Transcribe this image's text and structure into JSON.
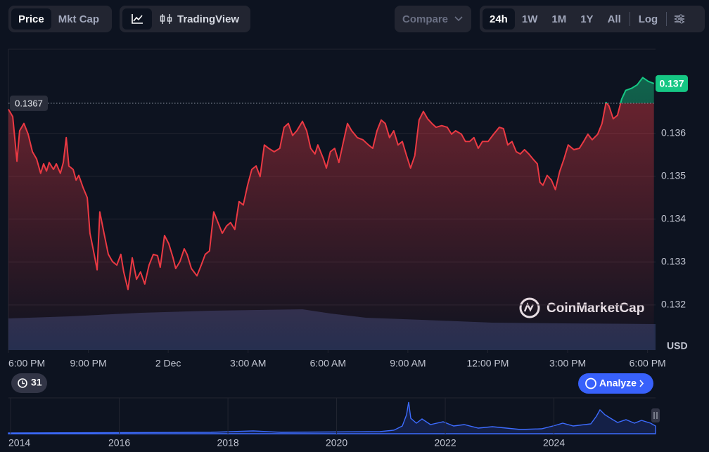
{
  "toolbar": {
    "views": [
      "Price",
      "Mkt Cap"
    ],
    "tradingview": "TradingView",
    "compare": "Compare",
    "ranges": [
      "24h",
      "1W",
      "1M",
      "1Y",
      "All"
    ],
    "log": "Log"
  },
  "chart_data": {
    "type": "line",
    "color": "#ea3943",
    "above_color": "#16c784",
    "x": [
      0,
      0.16,
      0.32,
      0.42,
      0.58,
      0.74,
      0.9,
      1.06,
      1.21,
      1.32,
      1.43,
      1.53,
      1.69,
      1.8,
      1.95,
      2.06,
      2.17,
      2.27,
      2.43,
      2.54,
      2.64,
      2.8,
      2.96,
      3.06,
      3.17,
      3.33,
      3.43,
      3.59,
      3.75,
      3.91,
      4.07,
      4.22,
      4.33,
      4.49,
      4.65,
      4.81,
      4.96,
      5.12,
      5.28,
      5.44,
      5.6,
      5.7,
      5.86,
      6.02,
      6.18,
      6.28,
      6.44,
      6.6,
      6.71,
      6.87,
      7.08,
      7.24,
      7.39,
      7.55,
      7.71,
      7.87,
      8.03,
      8.19,
      8.34,
      8.5,
      8.66,
      8.82,
      8.98,
      9.14,
      9.3,
      9.45,
      9.61,
      9.77,
      9.98,
      10.19,
      10.35,
      10.51,
      10.67,
      10.83,
      11.04,
      11.2,
      11.35,
      11.51,
      11.62,
      11.83,
      11.94,
      12.09,
      12.25,
      12.41,
      12.57,
      12.73,
      12.89,
      13.1,
      13.31,
      13.52,
      13.68,
      13.84,
      14.0,
      14.15,
      14.31,
      14.47,
      14.63,
      14.79,
      14.95,
      15.1,
      15.26,
      15.42,
      15.58,
      15.74,
      15.9,
      16.06,
      16.27,
      16.48,
      16.64,
      16.79,
      17.01,
      17.16,
      17.32,
      17.48,
      17.64,
      17.8,
      18.01,
      18.22,
      18.43,
      18.59,
      18.75,
      18.91,
      19.07,
      19.22,
      19.38,
      19.54,
      19.7,
      19.86,
      19.96,
      20.07,
      20.23,
      20.39,
      20.54,
      20.7,
      20.86,
      21.02,
      21.23,
      21.44,
      21.6,
      21.76,
      21.92,
      22.13,
      22.29,
      22.44,
      22.55,
      22.71,
      22.87,
      23.03,
      23.18,
      23.4,
      23.61,
      23.82,
      24.03,
      24.24
    ],
    "values": [
      0.13656,
      0.13639,
      0.13535,
      0.13606,
      0.13623,
      0.13598,
      0.13557,
      0.1354,
      0.13507,
      0.13529,
      0.13512,
      0.13532,
      0.13516,
      0.13529,
      0.13507,
      0.13532,
      0.1359,
      0.13524,
      0.13516,
      0.13491,
      0.13502,
      0.13474,
      0.1345,
      0.13367,
      0.13334,
      0.13282,
      0.13417,
      0.13367,
      0.13318,
      0.13301,
      0.13293,
      0.13318,
      0.13277,
      0.13236,
      0.1331,
      0.1326,
      0.13277,
      0.13249,
      0.13293,
      0.13318,
      0.13315,
      0.13288,
      0.13362,
      0.13343,
      0.1331,
      0.13285,
      0.13301,
      0.13331,
      0.13318,
      0.13285,
      0.13268,
      0.13293,
      0.13318,
      0.13326,
      0.13417,
      0.13392,
      0.13367,
      0.13384,
      0.13392,
      0.13376,
      0.13441,
      0.13433,
      0.13479,
      0.13516,
      0.13524,
      0.13499,
      0.13573,
      0.13565,
      0.13557,
      0.13565,
      0.13614,
      0.13623,
      0.13595,
      0.13606,
      0.13628,
      0.13606,
      0.13565,
      0.13552,
      0.13573,
      0.1354,
      0.13519,
      0.13557,
      0.13565,
      0.13532,
      0.13578,
      0.13623,
      0.13606,
      0.1359,
      0.13585,
      0.13573,
      0.13565,
      0.13606,
      0.13631,
      0.13623,
      0.1359,
      0.13606,
      0.13573,
      0.13581,
      0.13548,
      0.13519,
      0.13548,
      0.13631,
      0.13651,
      0.13634,
      0.13623,
      0.13614,
      0.13618,
      0.13614,
      0.13598,
      0.13606,
      0.13598,
      0.13581,
      0.13581,
      0.1359,
      0.13565,
      0.13581,
      0.13581,
      0.13598,
      0.13614,
      0.13611,
      0.13573,
      0.13581,
      0.13557,
      0.13552,
      0.13562,
      0.13552,
      0.1354,
      0.13529,
      0.13486,
      0.13479,
      0.13502,
      0.13491,
      0.13469,
      0.13511,
      0.1354,
      0.13573,
      0.13562,
      0.13565,
      0.13581,
      0.13598,
      0.13585,
      0.13598,
      0.13623,
      0.13672,
      0.13664,
      0.13634,
      0.13642,
      0.1368,
      0.137,
      0.13705,
      0.13713,
      0.1373,
      0.13721,
      0.13716
    ],
    "xlim": [
      0,
      24.3
    ],
    "xticks": [
      {
        "value": 0,
        "label": "6:00 PM"
      },
      {
        "value": 3,
        "label": "9:00 PM"
      },
      {
        "value": 6,
        "label": "2 Dec"
      },
      {
        "value": 9,
        "label": "3:00 AM"
      },
      {
        "value": 12,
        "label": "6:00 AM"
      },
      {
        "value": 15,
        "label": "9:00 AM"
      },
      {
        "value": 18,
        "label": "12:00 PM"
      },
      {
        "value": 21,
        "label": "3:00 PM"
      },
      {
        "value": 24,
        "label": "6:00 PM"
      }
    ],
    "ylim": [
      0.13095,
      0.13796
    ],
    "yticks": [
      0.132,
      0.133,
      0.134,
      0.135,
      0.136
    ],
    "ylabel": "USD",
    "grid": true,
    "reference": 0.1367,
    "last_price": {
      "value": 0.13716,
      "label": "0.137"
    }
  },
  "watermark": "CoinMarketCap",
  "history_badge": "31",
  "analyze": "Analyze",
  "overview": {
    "xlim": [
      2013.96,
      2025.87
    ],
    "xticks": [
      2014,
      2016,
      2018,
      2020,
      2022,
      2024
    ]
  }
}
